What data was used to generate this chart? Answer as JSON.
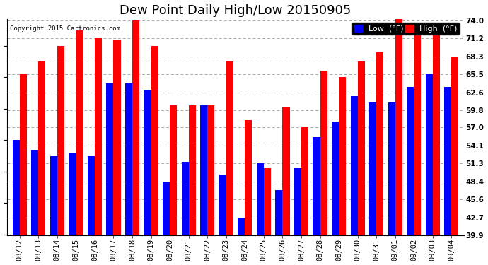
{
  "title": "Dew Point Daily High/Low 20150905",
  "copyright": "Copyright 2015 Cartronics.com",
  "dates": [
    "08/12",
    "08/13",
    "08/14",
    "08/15",
    "08/16",
    "08/17",
    "08/18",
    "08/19",
    "08/20",
    "08/21",
    "08/22",
    "08/23",
    "08/24",
    "08/25",
    "08/26",
    "08/27",
    "08/28",
    "08/29",
    "08/30",
    "08/31",
    "09/01",
    "09/02",
    "09/03",
    "09/04"
  ],
  "low": [
    55.0,
    53.5,
    52.5,
    53.0,
    52.5,
    64.0,
    64.0,
    63.0,
    48.4,
    51.5,
    60.5,
    49.5,
    42.7,
    51.3,
    47.0,
    50.5,
    55.5,
    58.0,
    62.0,
    61.0,
    61.0,
    63.5,
    65.5,
    63.5
  ],
  "high": [
    65.5,
    67.5,
    70.0,
    72.5,
    71.2,
    71.0,
    74.0,
    70.0,
    60.5,
    60.5,
    60.5,
    67.5,
    58.2,
    50.5,
    60.2,
    57.0,
    66.0,
    65.0,
    67.5,
    69.0,
    74.2,
    72.5,
    72.5,
    68.3
  ],
  "low_color": "#0000ff",
  "high_color": "#ff0000",
  "bg_color": "#ffffff",
  "grid_color": "#aaaaaa",
  "yticks": [
    39.9,
    42.7,
    45.6,
    48.4,
    51.3,
    54.1,
    57.0,
    59.8,
    62.6,
    65.5,
    68.3,
    71.2,
    74.0
  ],
  "ymin": 39.9,
  "ymax": 74.0,
  "bar_width": 0.38,
  "title_fontsize": 13,
  "tick_fontsize": 7.5,
  "legend_fontsize": 8
}
